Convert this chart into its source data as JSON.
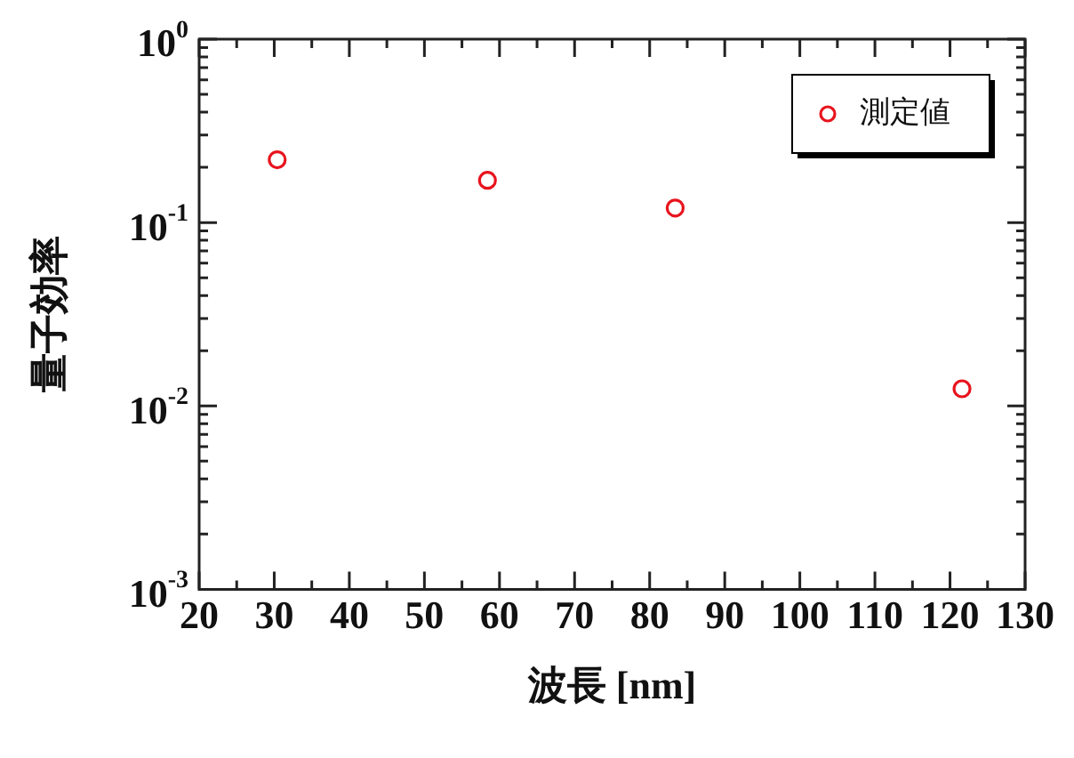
{
  "chart_data": {
    "type": "scatter",
    "xlabel": "波長 [nm]",
    "ylabel": "量子効率",
    "log": "y",
    "legend": "top right",
    "marker": "circle",
    "grid": false,
    "xlim": [
      20,
      130
    ],
    "xticks": [
      20,
      {
        "value": 25,
        "label": null
      },
      30,
      {
        "value": 35,
        "label": null
      },
      40,
      {
        "value": 45,
        "label": null
      },
      50,
      {
        "value": 55,
        "label": null
      },
      60,
      {
        "value": 65,
        "label": null
      },
      70,
      {
        "value": 75,
        "label": null
      },
      80,
      {
        "value": 85,
        "label": null
      },
      90,
      {
        "value": 95,
        "label": null
      },
      100,
      {
        "value": 105,
        "label": null
      },
      110,
      {
        "value": 115,
        "label": null
      },
      120,
      {
        "value": 125,
        "label": null
      },
      130
    ],
    "ylim": [
      0.001,
      1
    ],
    "yticks": [
      {
        "value": 0.001,
        "label": "10$^{-3}$"
      },
      {
        "value": 0.002,
        "label": null
      },
      {
        "value": 0.003,
        "label": null
      },
      {
        "value": 0.004,
        "label": null
      },
      {
        "value": 0.005,
        "label": null
      },
      {
        "value": 0.006,
        "label": null
      },
      {
        "value": 0.007,
        "label": null
      },
      {
        "value": 0.008,
        "label": null
      },
      {
        "value": 0.009,
        "label": null
      },
      {
        "value": 0.01,
        "label": "10$^{-2}$"
      },
      {
        "value": 0.02,
        "label": null
      },
      {
        "value": 0.03,
        "label": null
      },
      {
        "value": 0.04,
        "label": null
      },
      {
        "value": 0.05,
        "label": null
      },
      {
        "value": 0.06,
        "label": null
      },
      {
        "value": 0.07,
        "label": null
      },
      {
        "value": 0.08,
        "label": null
      },
      {
        "value": 0.09,
        "label": null
      },
      {
        "value": 0.1,
        "label": "10$^{-1}$"
      },
      {
        "value": 0.2,
        "label": null
      },
      {
        "value": 0.3,
        "label": null
      },
      {
        "value": 0.4,
        "label": null
      },
      {
        "value": 0.5,
        "label": null
      },
      {
        "value": 0.6,
        "label": null
      },
      {
        "value": 0.7,
        "label": null
      },
      {
        "value": 0.8,
        "label": null
      },
      {
        "value": 0.9,
        "label": null
      },
      {
        "value": 1,
        "label": "10$^{0}$"
      }
    ],
    "series": [
      {
        "name": "測定値",
        "color": "#e8141e",
        "x": [
          30.4,
          58.4,
          83.4,
          121.6
        ],
        "values": [
          0.22,
          0.17,
          0.12,
          0.0124
        ]
      }
    ]
  }
}
